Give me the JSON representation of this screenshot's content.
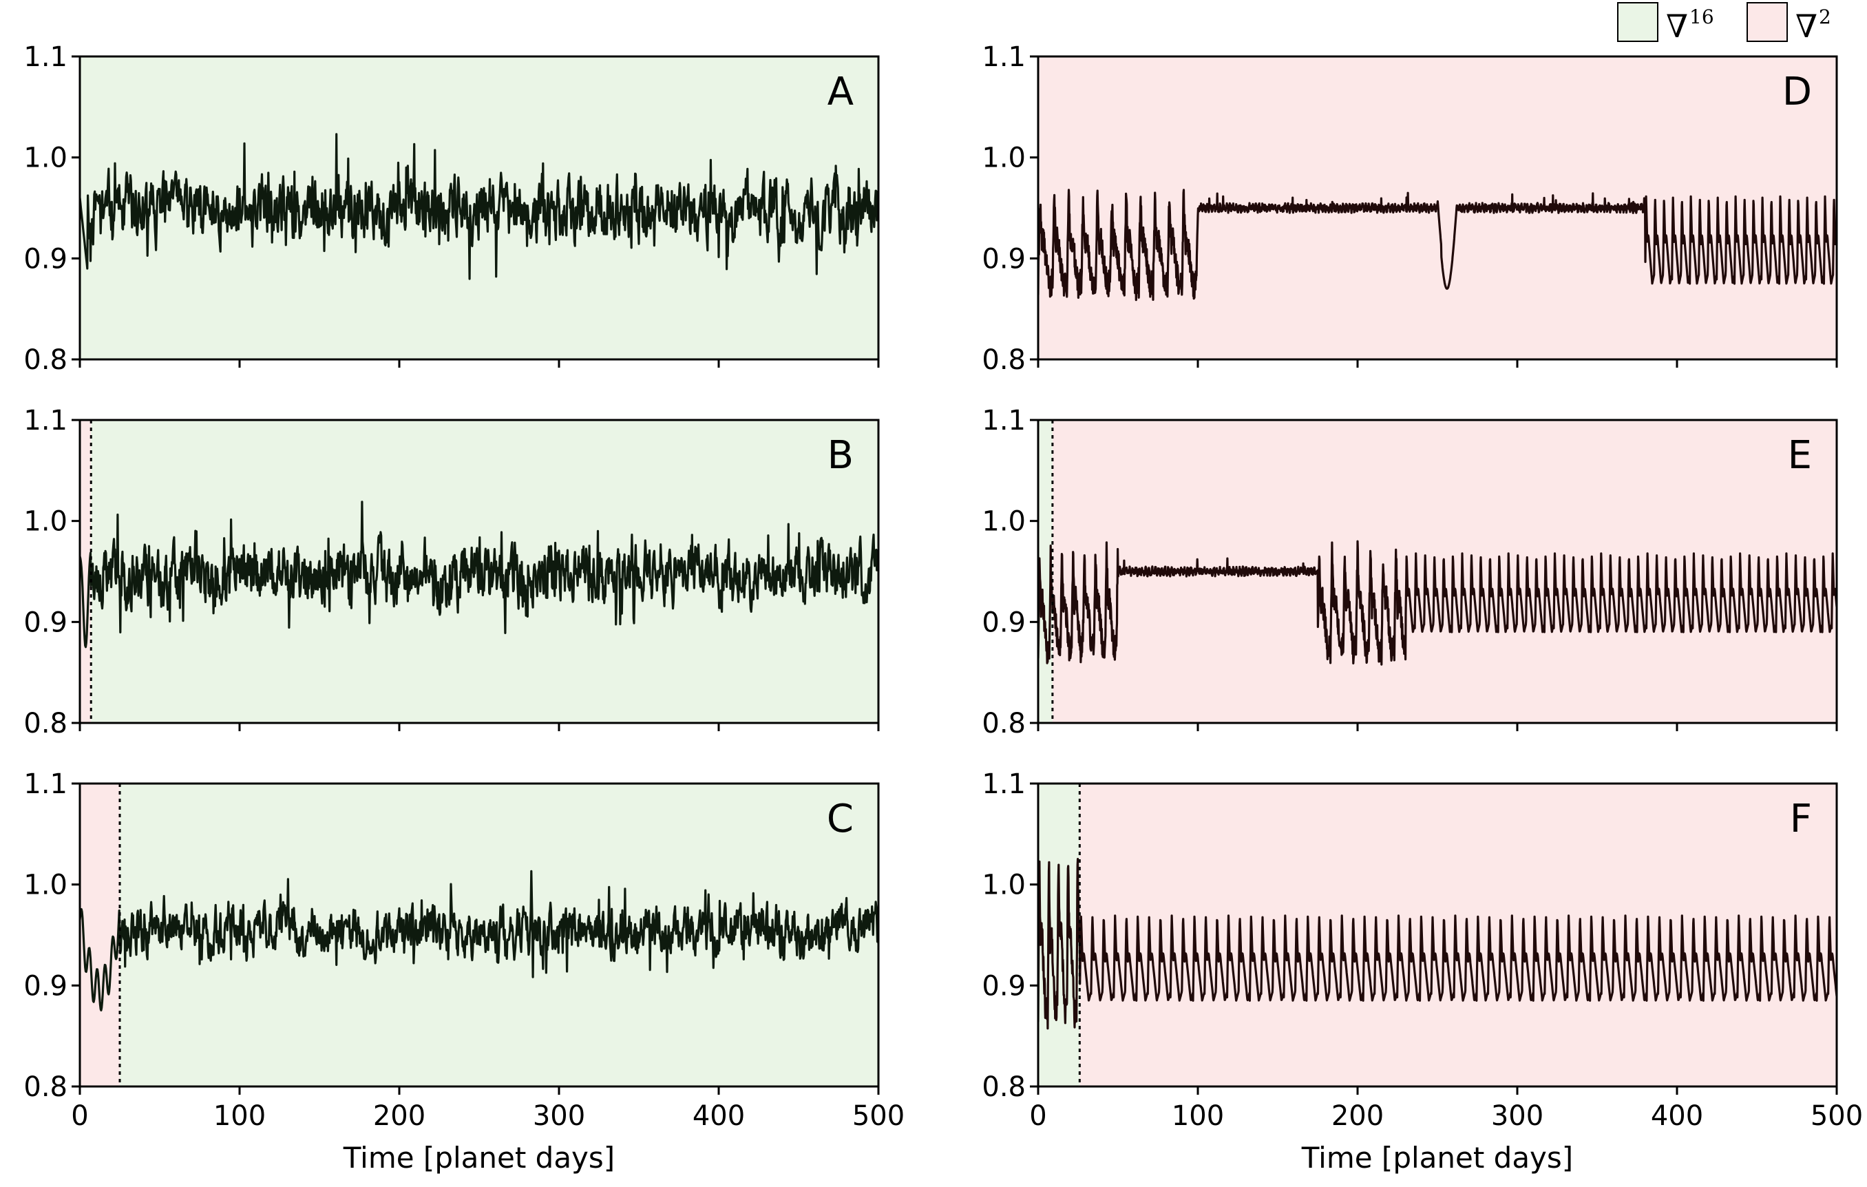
{
  "colors": {
    "green_bg": "#eaf5e6",
    "red_bg": "#fce8e8",
    "line_dark": "#0e1a0e",
    "line_maroon": "#200a0a"
  },
  "legend": {
    "items": [
      {
        "symbol": "∇",
        "exponent": "16",
        "color": "#eaf5e6"
      },
      {
        "symbol": "∇",
        "exponent": "2",
        "color": "#fce8e8"
      }
    ]
  },
  "chart_data": [
    {
      "panel": "A",
      "type": "line",
      "xlim": [
        0,
        500
      ],
      "ylim": [
        0.8,
        1.1
      ],
      "xticks": [
        "0",
        "100",
        "200",
        "300",
        "400",
        "500"
      ],
      "yticks": [
        "0.8",
        "0.9",
        "1.0",
        "1.1"
      ],
      "regions": [
        {
          "from": 0,
          "to": 500,
          "scheme": "∇16"
        }
      ],
      "switch_at": null,
      "xlabel": "",
      "behavior": "chaotic",
      "mean": 0.948,
      "amp": 0.035,
      "seed": 11
    },
    {
      "panel": "B",
      "type": "line",
      "xlim": [
        0,
        500
      ],
      "ylim": [
        0.8,
        1.1
      ],
      "xticks": [
        "0",
        "100",
        "200",
        "300",
        "400",
        "500"
      ],
      "yticks": [
        "0.8",
        "0.9",
        "1.0",
        "1.1"
      ],
      "regions": [
        {
          "from": 0,
          "to": 7,
          "scheme": "∇2"
        },
        {
          "from": 7,
          "to": 500,
          "scheme": "∇16"
        }
      ],
      "switch_at": 7,
      "xlabel": "",
      "behavior": "chaotic",
      "mean": 0.948,
      "amp": 0.035,
      "seed": 23
    },
    {
      "panel": "C",
      "type": "line",
      "xlim": [
        0,
        500
      ],
      "ylim": [
        0.8,
        1.1
      ],
      "xticks": [
        "0",
        "100",
        "200",
        "300",
        "400",
        "500"
      ],
      "yticks": [
        "0.8",
        "0.9",
        "1.0",
        "1.1"
      ],
      "regions": [
        {
          "from": 0,
          "to": 25,
          "scheme": "∇2"
        },
        {
          "from": 25,
          "to": 500,
          "scheme": "∇16"
        }
      ],
      "switch_at": 25,
      "xlabel": "Time [planet days]",
      "behavior": "chaotic",
      "mean": 0.955,
      "amp": 0.028,
      "seed": 37
    },
    {
      "panel": "D",
      "type": "line",
      "xlim": [
        0,
        500
      ],
      "ylim": [
        0.8,
        1.1
      ],
      "xticks": [
        "0",
        "100",
        "200",
        "300",
        "400",
        "500"
      ],
      "yticks": [
        "0.8",
        "0.9",
        "1.0",
        "1.1"
      ],
      "regions": [
        {
          "from": 0,
          "to": 500,
          "scheme": "∇2"
        }
      ],
      "switch_at": null,
      "xlabel": "",
      "behavior": "regime",
      "seed": 41,
      "segments": [
        {
          "from": 0,
          "to": 100,
          "mode": "transient",
          "low": 0.87,
          "high": 0.96,
          "period": 9
        },
        {
          "from": 100,
          "to": 250,
          "mode": "flat",
          "level": 0.95
        },
        {
          "from": 250,
          "to": 262,
          "mode": "dip",
          "level": 0.95,
          "low": 0.87,
          "high": 0.96
        },
        {
          "from": 262,
          "to": 380,
          "mode": "flat",
          "level": 0.95
        },
        {
          "from": 380,
          "to": 500,
          "mode": "periodic",
          "low": 0.875,
          "high": 0.962,
          "period": 5.6
        }
      ]
    },
    {
      "panel": "E",
      "type": "line",
      "xlim": [
        0,
        500
      ],
      "ylim": [
        0.8,
        1.1
      ],
      "xticks": [
        "0",
        "100",
        "200",
        "300",
        "400",
        "500"
      ],
      "yticks": [
        "0.8",
        "0.9",
        "1.0",
        "1.1"
      ],
      "regions": [
        {
          "from": 0,
          "to": 9,
          "scheme": "∇16"
        },
        {
          "from": 9,
          "to": 500,
          "scheme": "∇2"
        }
      ],
      "switch_at": 9,
      "xlabel": "",
      "behavior": "regime",
      "seed": 53,
      "segments": [
        {
          "from": 0,
          "to": 50,
          "mode": "transient",
          "low": 0.87,
          "high": 0.97,
          "period": 7
        },
        {
          "from": 50,
          "to": 175,
          "mode": "flat",
          "level": 0.95
        },
        {
          "from": 175,
          "to": 230,
          "mode": "transient",
          "low": 0.87,
          "high": 0.97,
          "period": 8
        },
        {
          "from": 230,
          "to": 500,
          "mode": "periodic",
          "low": 0.89,
          "high": 0.968,
          "period": 5.8
        }
      ]
    },
    {
      "panel": "F",
      "type": "line",
      "xlim": [
        0,
        500
      ],
      "ylim": [
        0.8,
        1.1
      ],
      "xticks": [
        "0",
        "100",
        "200",
        "300",
        "400",
        "500"
      ],
      "yticks": [
        "0.8",
        "0.9",
        "1.0",
        "1.1"
      ],
      "regions": [
        {
          "from": 0,
          "to": 26,
          "scheme": "∇16"
        },
        {
          "from": 26,
          "to": 500,
          "scheme": "∇2"
        }
      ],
      "switch_at": 26,
      "xlabel": "Time [planet days]",
      "behavior": "regime",
      "seed": 67,
      "segments": [
        {
          "from": 0,
          "to": 26,
          "mode": "transient",
          "low": 0.87,
          "high": 1.03,
          "period": 6
        },
        {
          "from": 26,
          "to": 500,
          "mode": "periodic",
          "low": 0.885,
          "high": 0.97,
          "period": 7.1
        }
      ]
    }
  ]
}
